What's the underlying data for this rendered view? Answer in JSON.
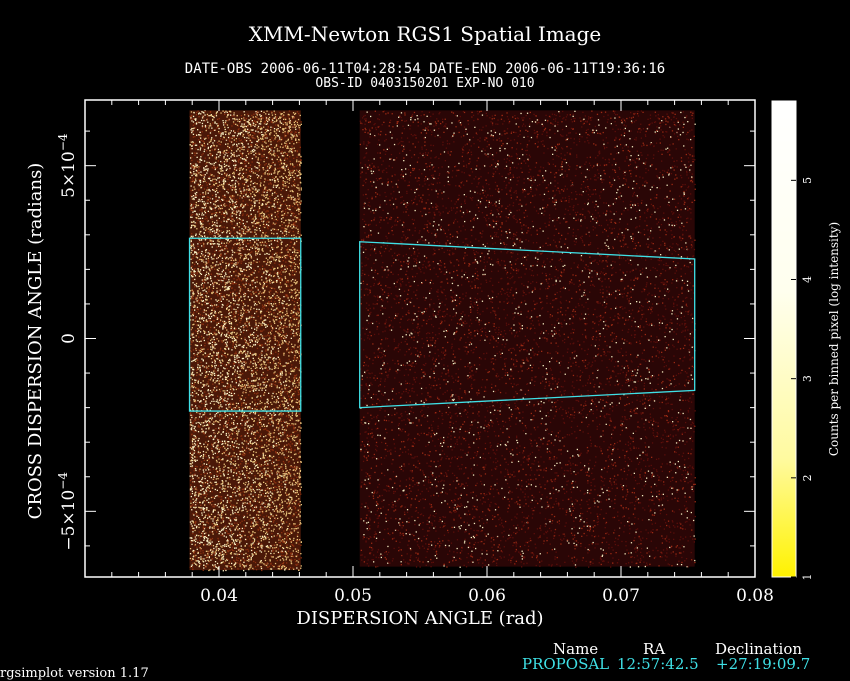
{
  "header": {
    "title": "XMM-Newton  RGS1 Spatial Image",
    "subtitle_1": "DATE-OBS 2006-06-11T04:28:54   DATE-END 2006-06-11T19:36:16",
    "subtitle_2": "OBS-ID 0403150201 EXP-NO 010"
  },
  "footer": {
    "version": "rgsimplot version 1.17",
    "name_header": "Name",
    "ra_header": "RA",
    "dec_header": "Declination",
    "name": "PROPOSAL",
    "ra": "12:57:42.5",
    "dec": "+27:19:09.7"
  },
  "colors": {
    "background": "#000000",
    "region": "#3fe0e6",
    "low": "#6b0f0f",
    "high": "#fffde0"
  },
  "chart_data": {
    "type": "heatmap",
    "title": "XMM-Newton  RGS1 Spatial Image",
    "xlabel": "DISPERSION ANGLE (rad)",
    "ylabel": "CROSS DISPERSION ANGLE (radians)",
    "xlim": [
      0.03,
      0.08
    ],
    "ylim": [
      -0.00069,
      0.00069
    ],
    "x_ticks": [
      {
        "value": 0.04,
        "label": "0.04"
      },
      {
        "value": 0.05,
        "label": "0.05"
      },
      {
        "value": 0.06,
        "label": "0.06"
      },
      {
        "value": 0.07,
        "label": "0.07"
      },
      {
        "value": 0.08,
        "label": "0.08"
      }
    ],
    "y_ticks": [
      {
        "value": -0.0005,
        "mant": "−5×10",
        "exp": "−4"
      },
      {
        "value": 0,
        "mant": "0",
        "exp": ""
      },
      {
        "value": 0.0005,
        "mant": "5×10",
        "exp": "−4"
      }
    ],
    "colorbar": {
      "label": "Counts per binned pixel (log intensity)",
      "range": [
        1,
        5.8
      ],
      "ticks": [
        {
          "value": 1,
          "label": "1"
        },
        {
          "value": 2,
          "label": "2"
        },
        {
          "value": 3,
          "label": "3"
        },
        {
          "value": 4,
          "label": "4"
        },
        {
          "value": 5,
          "label": "5"
        }
      ]
    },
    "event_strips": [
      {
        "x_start": 0.0378,
        "x_end": 0.0461,
        "y_min": -0.00067,
        "y_max": 0.00066,
        "brightness": "high"
      },
      {
        "x_start": 0.0505,
        "x_end": 0.0755,
        "y_min": -0.00066,
        "y_max": 0.00066,
        "brightness": "low"
      }
    ],
    "regions": [
      {
        "x_start": 0.0378,
        "x_end": 0.0461,
        "y_top": [
          0.00029,
          0.00029
        ],
        "y_bottom": [
          -0.00021,
          -0.00021
        ]
      },
      {
        "x_start": 0.0505,
        "x_end": 0.0755,
        "y_top": [
          0.00028,
          0.00023
        ],
        "y_bottom": [
          -0.0002,
          -0.00015
        ]
      }
    ]
  }
}
